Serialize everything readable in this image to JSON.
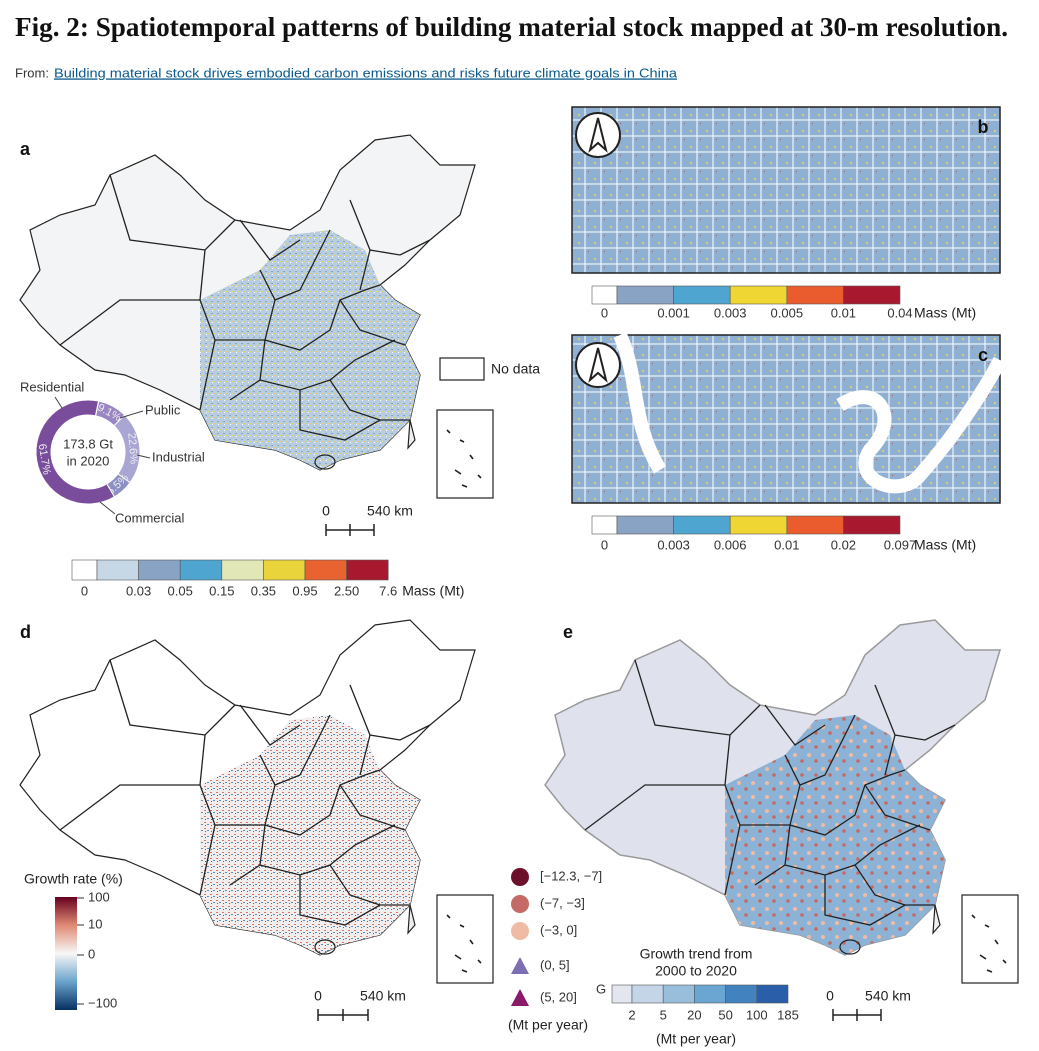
{
  "header": {
    "title": "Fig. 2: Spatiotemporal patterns of building material stock mapped at 30-m resolution.",
    "from_label": "From:",
    "link": "Building material stock drives embodied carbon emissions and risks future climate goals in China"
  },
  "panel_a": {
    "letter": "a",
    "no_data": "No data",
    "scale_zero": "0",
    "scale_label": "540 km",
    "donut": {
      "center_line1": "173.8 Gt",
      "center_line2": "in 2020",
      "names": [
        "Public",
        "Industrial",
        "Commercial",
        "Residential"
      ],
      "values": [
        9.1,
        22.6,
        6.5,
        61.7
      ],
      "value_labels": [
        "9.1%",
        "22.6%",
        "6.5%",
        "61.7%"
      ],
      "colors": [
        "#9a86c2",
        "#aaa6d3",
        "#8d90c2",
        "#7a4d9c"
      ]
    },
    "legend": {
      "ticks": [
        "0",
        "0.03",
        "0.05",
        "0.15",
        "0.35",
        "0.95",
        "2.50",
        "7.6"
      ],
      "unit": "Mass (Mt)",
      "colors": [
        "#ffffff",
        "#c6d7e6",
        "#89a3c5",
        "#4ea5cf",
        "#e2e7b8",
        "#ead43c",
        "#e8632f",
        "#a8192f"
      ]
    }
  },
  "panel_b": {
    "letter": "b",
    "legend": {
      "ticks": [
        "0",
        "0.001",
        "0.003",
        "0.005",
        "0.01",
        "0.04"
      ],
      "unit": "Mass (Mt)",
      "colors": [
        "#ffffff",
        "#89a3c5",
        "#4ea5cf",
        "#f0d632",
        "#ea5b2d",
        "#a8192f"
      ]
    }
  },
  "panel_c": {
    "letter": "c",
    "legend": {
      "ticks": [
        "0",
        "0.003",
        "0.006",
        "0.01",
        "0.02",
        "0.097"
      ],
      "unit": "Mass (Mt)",
      "colors": [
        "#ffffff",
        "#89a3c5",
        "#4ea5cf",
        "#f0d632",
        "#ea5b2d",
        "#a8192f"
      ]
    }
  },
  "panel_d": {
    "letter": "d",
    "legend_title": "Growth rate (%)",
    "ticks": [
      "100",
      "10",
      "0",
      "−100"
    ],
    "scale_zero": "0",
    "scale_label": "540 km"
  },
  "panel_e": {
    "letter": "e",
    "categories": [
      {
        "label": "[−12.3, −7]",
        "shape": "circle",
        "color": "#6b0f2b"
      },
      {
        "label": "(−7, −3]",
        "shape": "circle",
        "color": "#c46a64"
      },
      {
        "label": "(−3, 0]",
        "shape": "circle",
        "color": "#efbba5"
      },
      {
        "label": "(0, 5]",
        "shape": "triangle",
        "color": "#7d6db3"
      },
      {
        "label": "(5, 20]",
        "shape": "triangle",
        "color": "#8a1a6a"
      }
    ],
    "category_unit": "(Mt per year)",
    "trend_title_line1": "Growth trend from",
    "trend_title_line2": "2000 to 2020",
    "trend_prefix": "G",
    "trend_ticks": [
      "2",
      "5",
      "20",
      "50",
      "100",
      "185"
    ],
    "trend_unit": "(Mt per year)",
    "trend_colors": [
      "#e3e5ef",
      "#c4d5e7",
      "#98bedb",
      "#6aa6d1",
      "#4282bf",
      "#2a5ea8"
    ],
    "scale_zero": "0",
    "scale_label": "540 km"
  }
}
